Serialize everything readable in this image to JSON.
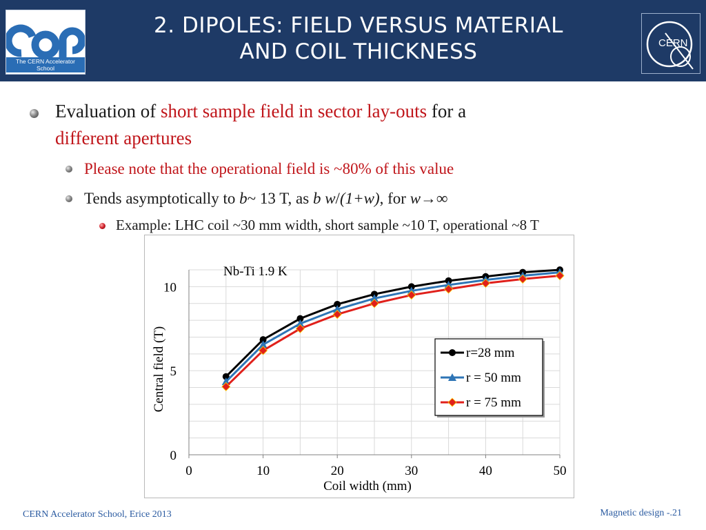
{
  "header": {
    "title_line1": "2. DIPOLES: FIELD VERSUS MATERIAL",
    "title_line2": "AND COIL THICKNESS",
    "logo_left_caption": "The CERN Accelerator School",
    "logo_right_text": "CERN"
  },
  "bullets": {
    "b1_part1": "Evaluation of ",
    "b1_red": "short sample field in sector lay-outs",
    "b1_part2": " for a",
    "b1_red2": "different apertures",
    "b2a": "Please note that the operational field is ~80% of this value",
    "b2b_part1": "Tends asymptotically to ",
    "b2b_b": "b",
    "b2b_part2": "~ 13 T, as ",
    "b2b_bw": "b w",
    "b2b_part3": "/",
    "b2b_frac": "(1+w)",
    "b2b_part4": ", for ",
    "b2b_w": "w",
    "b2b_arrow": "→∞",
    "b3": "Example: LHC coil ~30 mm width, short sample ~10 T, operational ~8 T"
  },
  "footer": {
    "left": "CERN Accelerator School, Erice 2013",
    "right": "Magnetic design -.21"
  },
  "chart_data": {
    "type": "line",
    "annotation": "Nb-Ti 1.9 K",
    "xlabel": "Coil width (mm)",
    "ylabel": "Central field (T)",
    "xlim": [
      0,
      50
    ],
    "ylim": [
      0,
      11
    ],
    "xticks": [
      0,
      10,
      20,
      30,
      40,
      50
    ],
    "yticks": [
      0,
      5,
      10
    ],
    "grid": true,
    "legend_position": "right",
    "x": [
      5,
      10,
      15,
      20,
      25,
      30,
      35,
      40,
      45,
      50
    ],
    "series": [
      {
        "name": "r=28 mm",
        "color": "#000000",
        "marker": "circle",
        "values": [
          4.65,
          6.85,
          8.1,
          8.95,
          9.55,
          10.0,
          10.35,
          10.6,
          10.85,
          11.0
        ]
      },
      {
        "name": "r = 50 mm",
        "color": "#2e75b6",
        "marker": "triangle",
        "values": [
          4.35,
          6.55,
          7.8,
          8.65,
          9.3,
          9.75,
          10.1,
          10.4,
          10.65,
          10.85
        ]
      },
      {
        "name": "r = 75 mm",
        "color": "#e0201b",
        "marker": "diamond",
        "values": [
          4.05,
          6.2,
          7.5,
          8.35,
          9.0,
          9.5,
          9.85,
          10.2,
          10.45,
          10.65
        ]
      }
    ]
  }
}
